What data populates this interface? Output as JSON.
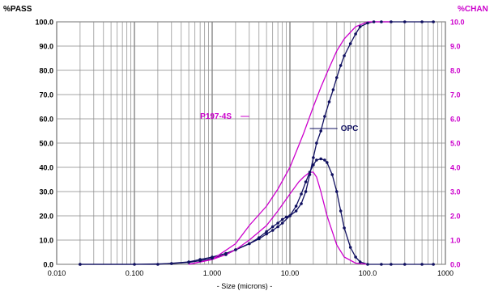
{
  "chart_data": {
    "type": "line",
    "xlabel": "- Size (microns) -",
    "ylabel_left": "%PASS",
    "ylabel_right": "%CHAN",
    "x_scale": "log",
    "xlim": [
      0.01,
      1000
    ],
    "ylim_left": [
      0,
      100
    ],
    "ylim_right": [
      0,
      10
    ],
    "grid": true,
    "x_tick_labels": [
      {
        "value": 0.01,
        "label": "0.010"
      },
      {
        "value": 0.1,
        "label": "0.100"
      },
      {
        "value": 1,
        "label": "1.000"
      },
      {
        "value": 10,
        "label": "10.00"
      },
      {
        "value": 100,
        "label": "100.0"
      },
      {
        "value": 1000,
        "label": "1000"
      }
    ],
    "y_left_ticks": [
      {
        "value": 0,
        "label": "0.0"
      },
      {
        "value": 10,
        "label": "10.0"
      },
      {
        "value": 20,
        "label": "20.0"
      },
      {
        "value": 30,
        "label": "30.0"
      },
      {
        "value": 40,
        "label": "40.0"
      },
      {
        "value": 50,
        "label": "50.0"
      },
      {
        "value": 60,
        "label": "60.0"
      },
      {
        "value": 70,
        "label": "70.0"
      },
      {
        "value": 80,
        "label": "80.0"
      },
      {
        "value": 90,
        "label": "90.0"
      },
      {
        "value": 100,
        "label": "100.0"
      }
    ],
    "y_right_ticks": [
      {
        "value": 0,
        "label": "0.0"
      },
      {
        "value": 1,
        "label": "1.0"
      },
      {
        "value": 2,
        "label": "2.0"
      },
      {
        "value": 3,
        "label": "3.0"
      },
      {
        "value": 4,
        "label": "4.0"
      },
      {
        "value": 5,
        "label": "5.0"
      },
      {
        "value": 6,
        "label": "6.0"
      },
      {
        "value": 7,
        "label": "7.0"
      },
      {
        "value": 8,
        "label": "8.0"
      },
      {
        "value": 9,
        "label": "9.0"
      },
      {
        "value": 10,
        "label": "10.0"
      }
    ],
    "annotations": [
      {
        "text": "P197-4S",
        "color": "#cc00cc",
        "label_at": [
          0.7,
          60
        ],
        "points_to": [
          3,
          60
        ]
      },
      {
        "text": "OPC",
        "color": "#101060",
        "label_at": [
          45,
          55
        ],
        "points_to": [
          18,
          55
        ]
      }
    ],
    "series": [
      {
        "name": "OPC",
        "axis": "left",
        "kind": "cumulative",
        "color": "#101060",
        "markers": true,
        "x": [
          0.02,
          0.1,
          0.3,
          0.5,
          0.7,
          1.0,
          1.5,
          2.0,
          3.0,
          4.0,
          5.0,
          6.0,
          7.0,
          8.0,
          9.0,
          10.0,
          12.0,
          14.0,
          16.0,
          18.0,
          20.0,
          22.0,
          25.0,
          28.0,
          32.0,
          36.0,
          40.0,
          45.0,
          50.0,
          60.0,
          70.0,
          80.0,
          100.0,
          120.0,
          150.0,
          200.0,
          300.0,
          500.0,
          700.0
        ],
        "y": [
          0,
          0,
          0.3,
          0.8,
          1.5,
          2.5,
          4.0,
          6.0,
          8.5,
          11.0,
          13.5,
          15.5,
          17.0,
          18.5,
          19.5,
          20.0,
          22.0,
          25.0,
          30.0,
          37.0,
          44.0,
          50.0,
          55.0,
          61.0,
          67.0,
          72.0,
          77.0,
          82.0,
          86.0,
          91.0,
          95.0,
          98.0,
          99.5,
          100,
          100,
          100,
          100,
          100,
          100
        ]
      },
      {
        "name": "OPC",
        "axis": "right",
        "kind": "differential",
        "color": "#101060",
        "markers": true,
        "x": [
          0.02,
          0.2,
          0.5,
          0.7,
          1.0,
          1.5,
          2.0,
          3.0,
          4.0,
          5.0,
          6.0,
          7.0,
          8.0,
          10.0,
          12.0,
          14.0,
          16.0,
          18.0,
          20.0,
          22.0,
          25.0,
          28.0,
          30.0,
          35.0,
          40.0,
          45.0,
          50.0,
          60.0,
          70.0,
          80.0,
          100.0,
          150.0,
          200.0,
          300.0,
          500.0,
          700.0
        ],
        "y": [
          0,
          0,
          0.1,
          0.2,
          0.3,
          0.45,
          0.6,
          0.85,
          1.05,
          1.25,
          1.4,
          1.55,
          1.7,
          2.0,
          2.4,
          2.9,
          3.4,
          3.8,
          4.1,
          4.3,
          4.35,
          4.3,
          4.2,
          3.7,
          3.0,
          2.2,
          1.5,
          0.7,
          0.3,
          0.1,
          0,
          0,
          0,
          0,
          0,
          0
        ]
      },
      {
        "name": "P197-4S",
        "axis": "left",
        "kind": "cumulative",
        "color": "#cc00cc",
        "markers": false,
        "x": [
          0.5,
          1.0,
          2.0,
          3.0,
          5.0,
          7.0,
          10.0,
          15.0,
          20.0,
          25.0,
          30.0,
          40.0,
          50.0,
          70.0,
          100.0,
          150.0,
          200.0
        ],
        "y": [
          0,
          2.0,
          8.5,
          16.0,
          24.0,
          31.0,
          40.0,
          54.0,
          65.0,
          73.0,
          79.0,
          88.0,
          93.0,
          98.0,
          100,
          100,
          100
        ]
      },
      {
        "name": "P197-4S",
        "axis": "right",
        "kind": "differential",
        "color": "#cc00cc",
        "markers": false,
        "x": [
          0.5,
          1.0,
          1.5,
          2.0,
          3.0,
          5.0,
          7.0,
          10.0,
          13.0,
          15.0,
          18.0,
          20.0,
          22.0,
          25.0,
          30.0,
          40.0,
          50.0,
          70.0,
          100.0
        ],
        "y": [
          0,
          0.2,
          0.4,
          0.6,
          1.0,
          1.6,
          2.2,
          2.9,
          3.4,
          3.6,
          3.8,
          3.8,
          3.6,
          3.0,
          2.0,
          0.8,
          0.3,
          0.05,
          0
        ]
      }
    ]
  }
}
